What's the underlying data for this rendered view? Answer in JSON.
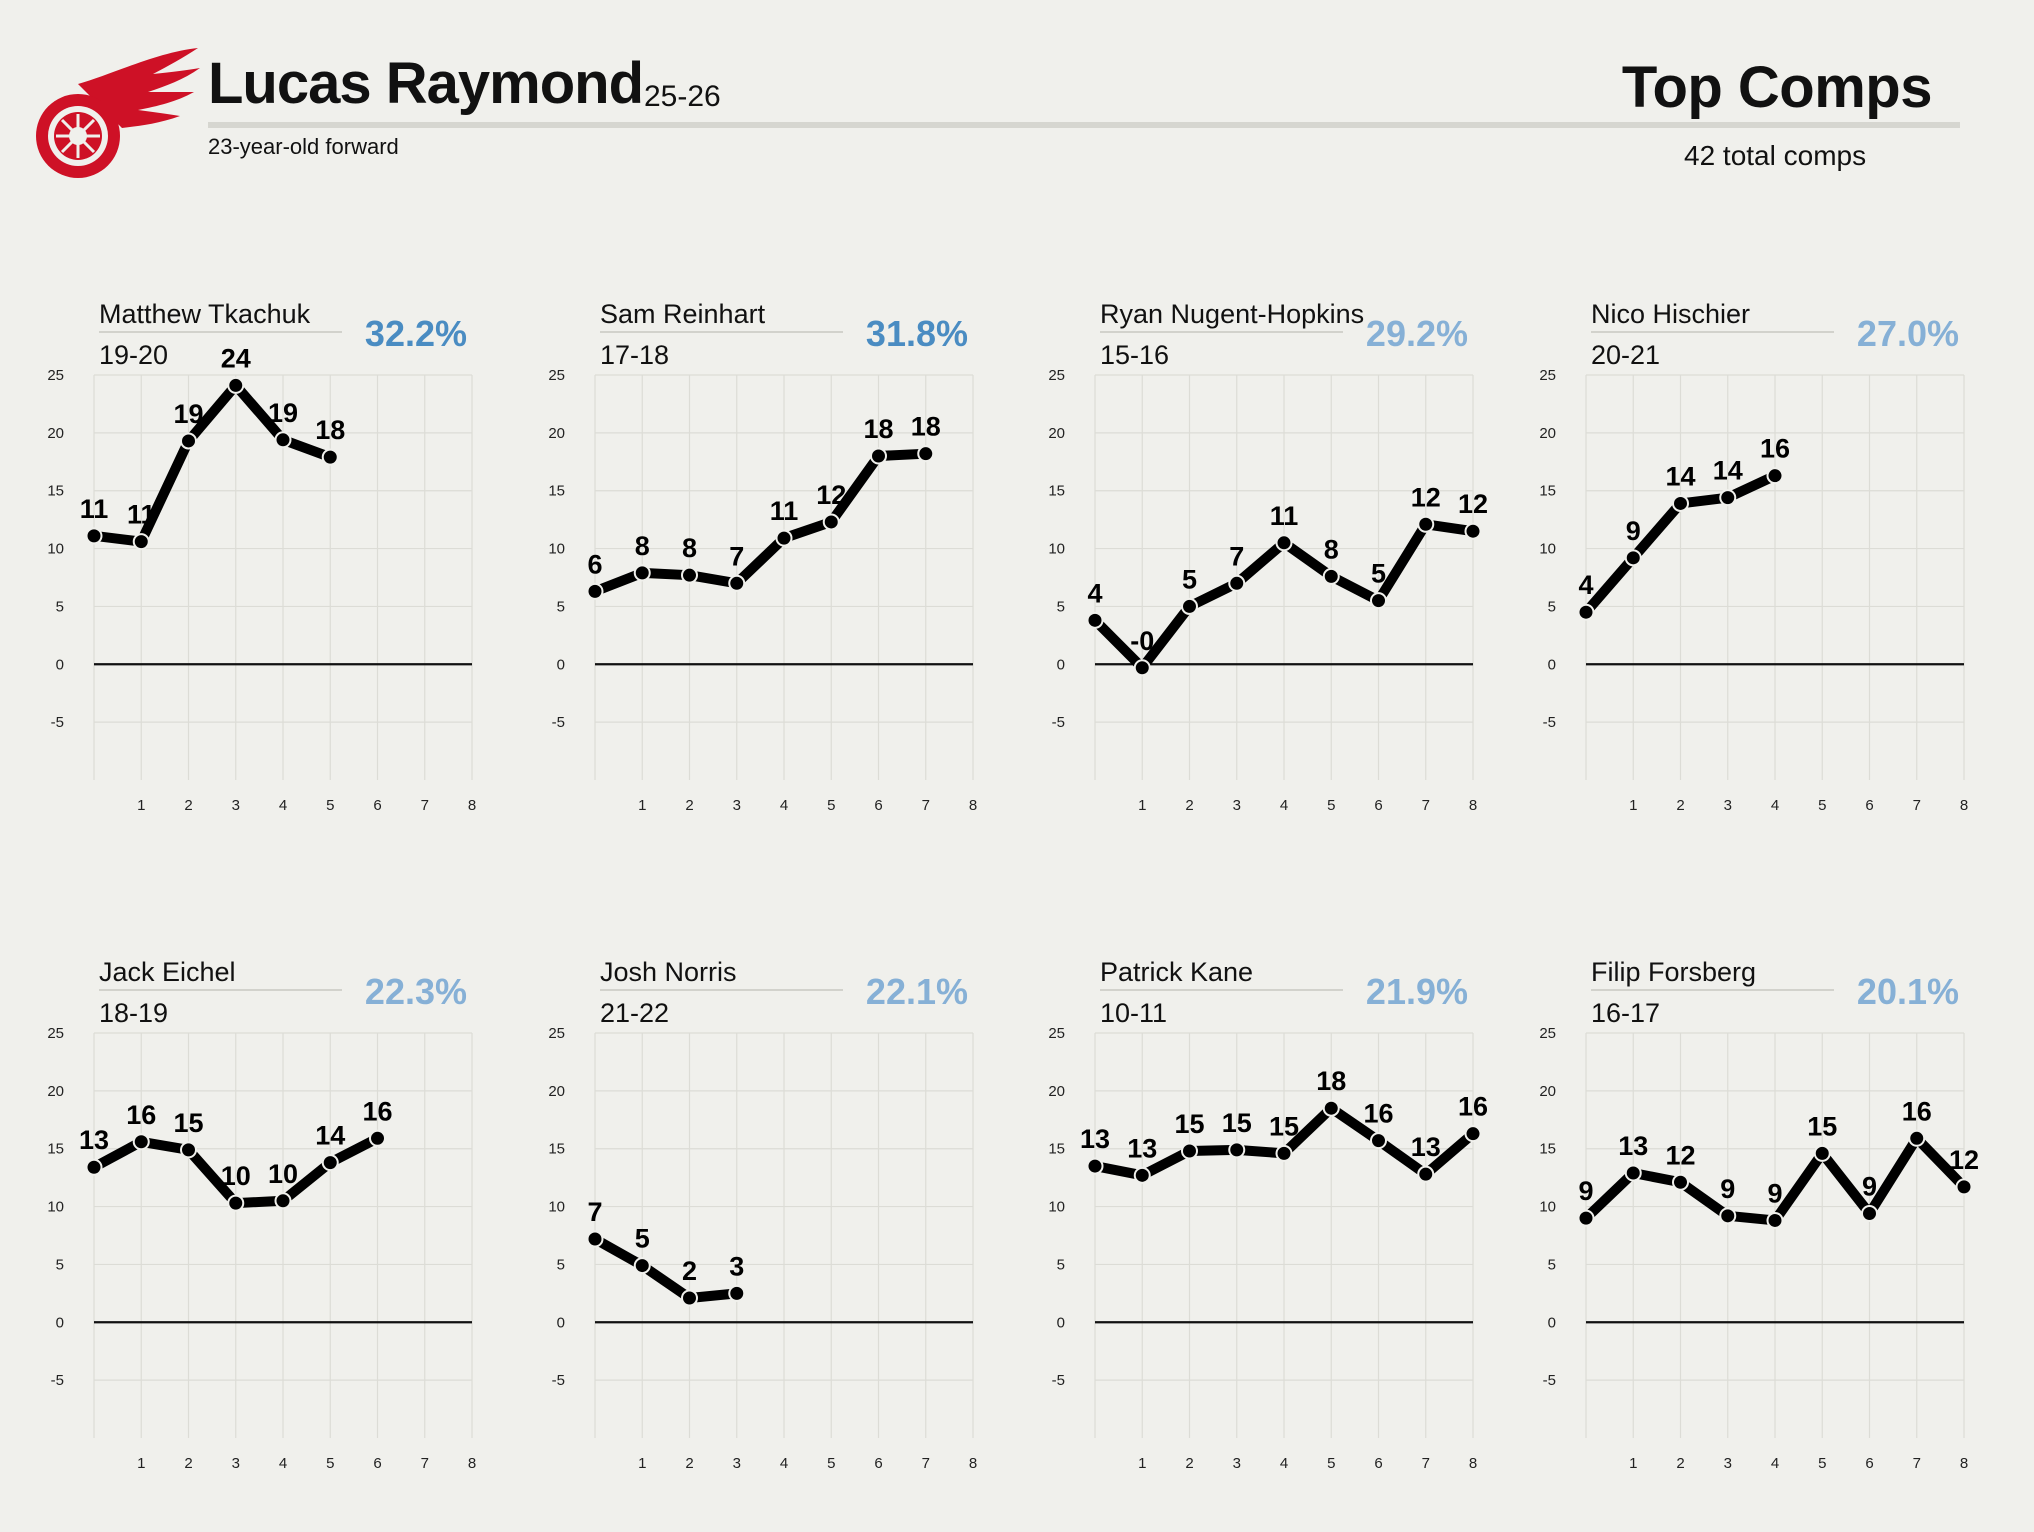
{
  "header": {
    "player_name": "Lucas Raymond",
    "season": "25-26",
    "subtitle": "23-year-old forward",
    "section_title": "Top Comps",
    "total_comps": "42 total comps",
    "logo_icon": "red-wings-logo-icon",
    "brand_color": "#ce1126"
  },
  "chart_data": [
    {
      "type": "line",
      "comp_name": "Matthew Tkachuk",
      "comp_season": "19-20",
      "similarity": "32.2%",
      "similarity_color": "#4a8cc2",
      "x": [
        0,
        1,
        2,
        3,
        4,
        5
      ],
      "values": [
        11.1,
        10.6,
        19.3,
        24.1,
        19.4,
        17.9
      ],
      "labels": [
        "11",
        "11",
        "19",
        "24",
        "19",
        "18"
      ],
      "xticks": [
        "1",
        "2",
        "3",
        "4",
        "5",
        "6",
        "7",
        "8"
      ],
      "yticks": [
        "25",
        "20",
        "15",
        "10",
        "5",
        "0",
        "-5"
      ],
      "ylim": [
        -10,
        25
      ],
      "xlim": [
        0,
        8
      ]
    },
    {
      "type": "line",
      "comp_name": "Sam Reinhart",
      "comp_season": "17-18",
      "similarity": "31.8%",
      "similarity_color": "#4a8cc2",
      "x": [
        0,
        1,
        2,
        3,
        4,
        5,
        6,
        7
      ],
      "values": [
        6.3,
        7.9,
        7.7,
        7.0,
        10.9,
        12.3,
        18.0,
        18.2
      ],
      "labels": [
        "6",
        "8",
        "8",
        "7",
        "11",
        "12",
        "18",
        "18"
      ],
      "xticks": [
        "1",
        "2",
        "3",
        "4",
        "5",
        "6",
        "7",
        "8"
      ],
      "yticks": [
        "25",
        "20",
        "15",
        "10",
        "5",
        "0",
        "-5"
      ],
      "ylim": [
        -10,
        25
      ],
      "xlim": [
        0,
        8
      ]
    },
    {
      "type": "line",
      "comp_name": "Ryan Nugent-Hopkins",
      "comp_season": "15-16",
      "similarity": "29.2%",
      "similarity_color": "#86b0d6",
      "x": [
        0,
        1,
        2,
        3,
        4,
        5,
        6,
        7,
        8
      ],
      "values": [
        3.8,
        -0.3,
        5.0,
        7.0,
        10.5,
        7.6,
        5.5,
        12.1,
        11.5
      ],
      "labels": [
        "4",
        "-0",
        "5",
        "7",
        "11",
        "8",
        "5",
        "12",
        "12"
      ],
      "xticks": [
        "1",
        "2",
        "3",
        "4",
        "5",
        "6",
        "7",
        "8"
      ],
      "yticks": [
        "25",
        "20",
        "15",
        "10",
        "5",
        "0",
        "-5"
      ],
      "ylim": [
        -10,
        25
      ],
      "xlim": [
        0,
        8
      ]
    },
    {
      "type": "line",
      "comp_name": "Nico Hischier",
      "comp_season": "20-21",
      "similarity": "27.0%",
      "similarity_color": "#86b0d6",
      "x": [
        0,
        1,
        2,
        3,
        4
      ],
      "values": [
        4.5,
        9.2,
        13.9,
        14.4,
        16.3
      ],
      "labels": [
        "4",
        "9",
        "14",
        "14",
        "16"
      ],
      "xticks": [
        "1",
        "2",
        "3",
        "4",
        "5",
        "6",
        "7",
        "8"
      ],
      "yticks": [
        "25",
        "20",
        "15",
        "10",
        "5",
        "0",
        "-5"
      ],
      "ylim": [
        -10,
        25
      ],
      "xlim": [
        0,
        8
      ]
    },
    {
      "type": "line",
      "comp_name": "Jack Eichel",
      "comp_season": "18-19",
      "similarity": "22.3%",
      "similarity_color": "#86b0d6",
      "x": [
        0,
        1,
        2,
        3,
        4,
        5,
        6
      ],
      "values": [
        13.4,
        15.6,
        14.9,
        10.3,
        10.5,
        13.8,
        15.9
      ],
      "labels": [
        "13",
        "16",
        "15",
        "10",
        "10",
        "14",
        "16"
      ],
      "xticks": [
        "1",
        "2",
        "3",
        "4",
        "5",
        "6",
        "7",
        "8"
      ],
      "yticks": [
        "25",
        "20",
        "15",
        "10",
        "5",
        "0",
        "-5"
      ],
      "ylim": [
        -10,
        25
      ],
      "xlim": [
        0,
        8
      ]
    },
    {
      "type": "line",
      "comp_name": "Josh Norris",
      "comp_season": "21-22",
      "similarity": "22.1%",
      "similarity_color": "#86b0d6",
      "x": [
        0,
        1,
        2,
        3
      ],
      "values": [
        7.2,
        4.9,
        2.1,
        2.5
      ],
      "labels": [
        "7",
        "5",
        "2",
        "3"
      ],
      "xticks": [
        "1",
        "2",
        "3",
        "4",
        "5",
        "6",
        "7",
        "8"
      ],
      "yticks": [
        "25",
        "20",
        "15",
        "10",
        "5",
        "0",
        "-5"
      ],
      "ylim": [
        -10,
        25
      ],
      "xlim": [
        0,
        8
      ]
    },
    {
      "type": "line",
      "comp_name": "Patrick Kane",
      "comp_season": "10-11",
      "similarity": "21.9%",
      "similarity_color": "#86b0d6",
      "x": [
        0,
        1,
        2,
        3,
        4,
        5,
        6,
        7,
        8
      ],
      "values": [
        13.5,
        12.7,
        14.8,
        14.9,
        14.6,
        18.5,
        15.7,
        12.8,
        16.3
      ],
      "labels": [
        "13",
        "13",
        "15",
        "15",
        "15",
        "18",
        "16",
        "13",
        "16"
      ],
      "xticks": [
        "1",
        "2",
        "3",
        "4",
        "5",
        "6",
        "7",
        "8"
      ],
      "yticks": [
        "25",
        "20",
        "15",
        "10",
        "5",
        "0",
        "-5"
      ],
      "ylim": [
        -10,
        25
      ],
      "xlim": [
        0,
        8
      ]
    },
    {
      "type": "line",
      "comp_name": "Filip Forsberg",
      "comp_season": "16-17",
      "similarity": "20.1%",
      "similarity_color": "#86b0d6",
      "x": [
        0,
        1,
        2,
        3,
        4,
        5,
        6,
        7,
        8
      ],
      "values": [
        9.0,
        12.9,
        12.1,
        9.2,
        8.8,
        14.6,
        9.4,
        15.9,
        11.7
      ],
      "labels": [
        "9",
        "13",
        "12",
        "9",
        "9",
        "15",
        "9",
        "16",
        "12"
      ],
      "xticks": [
        "1",
        "2",
        "3",
        "4",
        "5",
        "6",
        "7",
        "8"
      ],
      "yticks": [
        "25",
        "20",
        "15",
        "10",
        "5",
        "0",
        "-5"
      ],
      "ylim": [
        -10,
        25
      ],
      "xlim": [
        0,
        8
      ]
    }
  ]
}
